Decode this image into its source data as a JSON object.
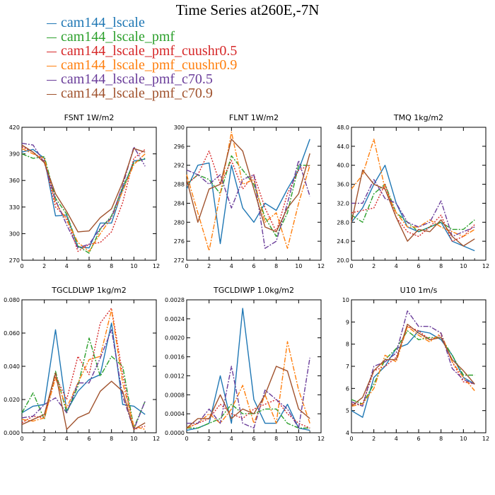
{
  "title": "Time Series at260E,-7N",
  "series_styles": [
    {
      "name": "cam144_lscale",
      "color": "#1f77b4",
      "dash": "solid"
    },
    {
      "name": "cam144_lscale_pmf",
      "color": "#2ca02c",
      "dash": "dashdot"
    },
    {
      "name": "cam144_lscale_pmf_cuushr0.5",
      "color": "#d62728",
      "dash": "dotted"
    },
    {
      "name": "cam144_lscale_pmf_cuushr0.9",
      "color": "#ff7f0e",
      "dash": "dashdot"
    },
    {
      "name": "cam144_lscale_pmf_c70.5",
      "color": "#6a3d9a",
      "dash": "dashdot"
    },
    {
      "name": "cam144_lscale_pmf_c70.9",
      "color": "#a0522d",
      "dash": "solid"
    }
  ],
  "chart_data": [
    {
      "type": "line",
      "title": "FSNT  1W/m2",
      "xlim": [
        0,
        12
      ],
      "ylim": [
        270,
        420
      ],
      "xticks": [
        "0",
        "2",
        "4",
        "6",
        "8",
        "10",
        "12"
      ],
      "yticks": [
        "270",
        "300",
        "330",
        "360",
        "390",
        "420"
      ],
      "x": [
        0,
        1,
        2,
        3,
        4,
        5,
        6,
        7,
        8,
        9,
        10,
        11
      ],
      "series": [
        {
          "name": "cam144_lscale",
          "values": [
            392,
            395,
            385,
            320,
            321,
            285,
            284,
            312,
            312,
            350,
            382,
            384
          ]
        },
        {
          "name": "cam144_lscale_pmf",
          "values": [
            390,
            385,
            387,
            340,
            322,
            286,
            278,
            305,
            320,
            352,
            380,
            385
          ]
        },
        {
          "name": "cam144_lscale_pmf_cuushr0.5",
          "values": [
            398,
            392,
            382,
            330,
            318,
            280,
            288,
            290,
            302,
            335,
            385,
            395
          ]
        },
        {
          "name": "cam144_lscale_pmf_cuushr0.9",
          "values": [
            396,
            390,
            385,
            335,
            315,
            290,
            280,
            300,
            318,
            348,
            378,
            390
          ]
        },
        {
          "name": "cam144_lscale_pmf_c70.5",
          "values": [
            402,
            400,
            380,
            338,
            310,
            284,
            288,
            306,
            318,
            354,
            398,
            376
          ]
        },
        {
          "name": "cam144_lscale_pmf_c70.9",
          "values": [
            400,
            392,
            380,
            345,
            325,
            302,
            303,
            318,
            328,
            358,
            396,
            392
          ]
        }
      ]
    },
    {
      "type": "line",
      "title": "FLNT  1W/m2",
      "xlim": [
        0,
        12
      ],
      "ylim": [
        272,
        300
      ],
      "xticks": [
        "0",
        "2",
        "4",
        "6",
        "8",
        "10",
        "12"
      ],
      "yticks": [
        "272",
        "276",
        "280",
        "284",
        "288",
        "292",
        "296",
        "300"
      ],
      "x": [
        0,
        1,
        2,
        3,
        4,
        5,
        6,
        7,
        8,
        9,
        10,
        11
      ],
      "series": [
        {
          "name": "cam144_lscale",
          "values": [
            287,
            292,
            292.5,
            275.5,
            292,
            283,
            280,
            284,
            282.5,
            287,
            291,
            297.5
          ]
        },
        {
          "name": "cam144_lscale_pmf",
          "values": [
            288,
            290,
            289,
            286,
            294,
            291,
            288,
            281,
            277,
            282,
            292,
            292
          ]
        },
        {
          "name": "cam144_lscale_pmf_cuushr0.5",
          "values": [
            288,
            290,
            295,
            288,
            293,
            287,
            290,
            283,
            278,
            286,
            291,
            292
          ]
        },
        {
          "name": "cam144_lscale_pmf_cuushr0.9",
          "values": [
            290,
            282,
            274,
            286,
            299,
            288,
            289,
            280,
            282,
            274.5,
            284,
            292
          ]
        },
        {
          "name": "cam144_lscale_pmf_c70.5",
          "values": [
            291,
            290,
            288,
            290,
            283,
            289,
            290,
            274.5,
            276,
            284,
            293,
            285.5
          ]
        },
        {
          "name": "cam144_lscale_pmf_c70.9",
          "values": [
            289,
            280,
            287,
            288,
            297.5,
            295,
            287,
            279,
            278,
            283,
            286,
            294.5
          ]
        }
      ]
    },
    {
      "type": "line",
      "title": "TMQ  1kg/m2",
      "xlim": [
        0,
        12
      ],
      "ylim": [
        20,
        48
      ],
      "xticks": [
        "0",
        "2",
        "4",
        "6",
        "8",
        "10",
        "12"
      ],
      "yticks": [
        "20.0",
        "24.0",
        "28.0",
        "32.0",
        "36.0",
        "40.0",
        "44.0",
        "48.0"
      ],
      "x": [
        0,
        1,
        2,
        3,
        4,
        5,
        6,
        7,
        8,
        9,
        10,
        11
      ],
      "series": [
        {
          "name": "cam144_lscale",
          "values": [
            28,
            31,
            36,
            40,
            32,
            27,
            26,
            27,
            28,
            24,
            23,
            22
          ]
        },
        {
          "name": "cam144_lscale_pmf",
          "values": [
            29.5,
            28,
            34,
            36,
            30,
            28,
            26,
            27,
            28,
            26.5,
            26.5,
            28.5
          ]
        },
        {
          "name": "cam144_lscale_pmf_cuushr0.5",
          "values": [
            30,
            30.5,
            31,
            36,
            29,
            26,
            25,
            27,
            29.5,
            24,
            25,
            27.5
          ]
        },
        {
          "name": "cam144_lscale_pmf_cuushr0.9",
          "values": [
            35,
            38,
            45.5,
            35,
            30,
            27,
            27,
            28.5,
            27,
            26,
            25,
            26.5
          ]
        },
        {
          "name": "cam144_lscale_pmf_c70.5",
          "values": [
            32,
            32,
            37,
            33,
            32,
            28,
            27,
            28,
            32.5,
            25,
            26,
            27
          ]
        },
        {
          "name": "cam144_lscale_pmf_c70.9",
          "values": [
            28,
            39,
            36,
            35,
            29,
            24,
            26.5,
            26,
            28.5,
            25,
            23,
            24.5
          ]
        }
      ]
    },
    {
      "type": "line",
      "title": "TGCLDLWP  1kg/m2",
      "xlim": [
        0,
        12
      ],
      "ylim": [
        0,
        0.08
      ],
      "xticks": [
        "0",
        "2",
        "4",
        "6",
        "8",
        "10",
        "12"
      ],
      "yticks": [
        "0.000",
        "0.020",
        "0.040",
        "0.060",
        "0.080"
      ],
      "x": [
        0,
        1,
        2,
        3,
        4,
        5,
        6,
        7,
        8,
        9,
        10,
        11
      ],
      "series": [
        {
          "name": "cam144_lscale",
          "values": [
            0.012,
            0.016,
            0.017,
            0.062,
            0.013,
            0.025,
            0.032,
            0.035,
            0.066,
            0.017,
            0.016,
            0.011
          ]
        },
        {
          "name": "cam144_lscale_pmf",
          "values": [
            0.012,
            0.024,
            0.008,
            0.037,
            0.012,
            0.028,
            0.057,
            0.034,
            0.046,
            0.04,
            0.003,
            0.019
          ]
        },
        {
          "name": "cam144_lscale_pmf_cuushr0.5",
          "values": [
            0.006,
            0.01,
            0.009,
            0.034,
            0.02,
            0.046,
            0.035,
            0.066,
            0.075,
            0.035,
            0.002,
            0.004
          ]
        },
        {
          "name": "cam144_lscale_pmf_cuushr0.9",
          "values": [
            0.008,
            0.007,
            0.009,
            0.033,
            0.015,
            0.03,
            0.044,
            0.046,
            0.074,
            0.03,
            0.004,
            0.002
          ]
        },
        {
          "name": "cam144_lscale_pmf_c70.5",
          "values": [
            0.009,
            0.01,
            0.017,
            0.021,
            0.012,
            0.03,
            0.03,
            0.045,
            0.062,
            0.022,
            0.002,
            0.019
          ]
        },
        {
          "name": "cam144_lscale_pmf_c70.9",
          "values": [
            0.005,
            0.008,
            0.011,
            0.036,
            0.002,
            0.009,
            0.012,
            0.025,
            0.031,
            0.025,
            0.002,
            0.006
          ]
        }
      ]
    },
    {
      "type": "line",
      "title": "TGCLDIWP  1.0kg/m2",
      "xlim": [
        0,
        12
      ],
      "ylim": [
        0,
        0.0028
      ],
      "xticks": [
        "0",
        "2",
        "4",
        "6",
        "8",
        "10",
        "12"
      ],
      "yticks": [
        "0.0000",
        "0.0004",
        "0.0008",
        "0.0012",
        "0.0016",
        "0.0020",
        "0.0024",
        "0.0028"
      ],
      "x": [
        0,
        1,
        2,
        3,
        4,
        5,
        6,
        7,
        8,
        9,
        10,
        11
      ],
      "series": [
        {
          "name": "cam144_lscale",
          "values": [
            5e-05,
            0.0001,
            0.0002,
            0.0012,
            0.0002,
            0.00262,
            0.0007,
            0.0002,
            0.0002,
            0.0006,
            0.0001,
            5e-05
          ]
        },
        {
          "name": "cam144_lscale_pmf",
          "values": [
            0.0001,
            0.0001,
            0.0002,
            0.0003,
            0.0006,
            0.0004,
            0.0004,
            0.0005,
            0.0005,
            0.0002,
            0.0001,
            0.0001
          ]
        },
        {
          "name": "cam144_lscale_pmf_cuushr0.5",
          "values": [
            0.0001,
            0.0002,
            0.0003,
            0.0006,
            0.0004,
            0.0003,
            0.0005,
            0.0006,
            0.0007,
            0.0004,
            0.0002,
            0.0001
          ]
        },
        {
          "name": "cam144_lscale_pmf_cuushr0.9",
          "values": [
            0.0001,
            0.0002,
            0.0004,
            0.0002,
            0.0005,
            0.001,
            0.0002,
            0.0008,
            0.0002,
            0.00192,
            0.0009,
            0.0002
          ]
        },
        {
          "name": "cam144_lscale_pmf_c70.5",
          "values": [
            0.0002,
            0.0002,
            0.0005,
            0.0002,
            0.0014,
            0.0002,
            0.0001,
            0.0009,
            0.0007,
            0.0005,
            0.0001,
            0.00158
          ]
        },
        {
          "name": "cam144_lscale_pmf_c70.9",
          "values": [
            0.0001,
            0.0003,
            0.0003,
            0.0008,
            0.0003,
            0.0005,
            0.0004,
            0.0008,
            0.0014,
            0.0013,
            0.0005,
            0.0003
          ]
        }
      ]
    },
    {
      "type": "line",
      "title": "U10  1m/s",
      "xlim": [
        0,
        12
      ],
      "ylim": [
        4,
        10
      ],
      "xticks": [
        "0",
        "2",
        "4",
        "6",
        "8",
        "10",
        "12"
      ],
      "yticks": [
        "4",
        "5",
        "6",
        "7",
        "8",
        "9",
        "10"
      ],
      "x": [
        0,
        1,
        2,
        3,
        4,
        5,
        6,
        7,
        8,
        9,
        10,
        11
      ],
      "series": [
        {
          "name": "cam144_lscale",
          "values": [
            5,
            4.7,
            6.5,
            7,
            7.8,
            8,
            8.6,
            8.5,
            8.2,
            7.5,
            6.5,
            6.2
          ]
        },
        {
          "name": "cam144_lscale_pmf",
          "values": [
            5.5,
            5.3,
            6.2,
            7.3,
            7.8,
            8.6,
            8.2,
            8.3,
            8.3,
            7.5,
            6.6,
            6.6
          ]
        },
        {
          "name": "cam144_lscale_pmf_cuushr0.5",
          "values": [
            5.3,
            5.3,
            6.8,
            7,
            7.4,
            8.8,
            8.6,
            8.2,
            8.4,
            7.2,
            6.3,
            6.2
          ]
        },
        {
          "name": "cam144_lscale_pmf_cuushr0.9",
          "values": [
            5.2,
            5.3,
            6,
            7.5,
            7.2,
            8.8,
            8.4,
            8.1,
            8.5,
            7.2,
            6.5,
            5.9
          ]
        },
        {
          "name": "cam144_lscale_pmf_c70.5",
          "values": [
            5.4,
            5.2,
            7,
            7.2,
            7.6,
            9.5,
            8.8,
            8.8,
            8.5,
            6.9,
            6.4,
            6.2
          ]
        },
        {
          "name": "cam144_lscale_pmf_c70.9",
          "values": [
            5.2,
            5.6,
            6.8,
            7.3,
            7.3,
            8.9,
            8.5,
            8.2,
            8.3,
            7.3,
            6.8,
            6.2
          ]
        }
      ]
    }
  ]
}
